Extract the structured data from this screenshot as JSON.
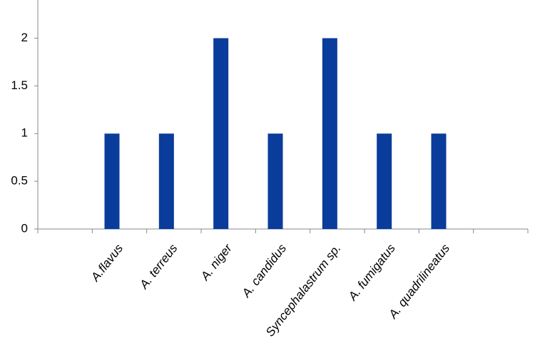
{
  "chart_data": {
    "type": "bar",
    "categories": [
      null,
      "A.flavus",
      "A. terreus",
      "A. niger",
      "A. candidus",
      "Syncephalastrum sp.",
      "A. fumigatus",
      "A. quadrilineatus",
      null
    ],
    "values": [
      null,
      1,
      1,
      2,
      1,
      2,
      1,
      1,
      null
    ],
    "color": "#0a3c9c",
    "ylim": [
      0,
      2.4
    ],
    "yticks": [
      0,
      0.5,
      1,
      1.5,
      2
    ],
    "grid": false
  }
}
